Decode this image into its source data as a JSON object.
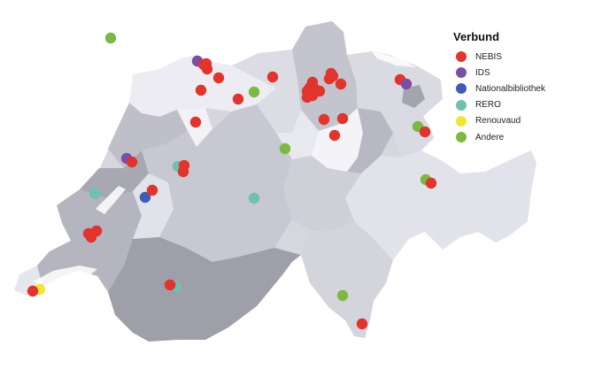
{
  "legend": {
    "title": "Verbund",
    "items": [
      {
        "key": "NEBIS",
        "label": "NEBIS",
        "color": "#e0342c"
      },
      {
        "key": "IDS",
        "label": "IDS",
        "color": "#7b4fa8"
      },
      {
        "key": "Nationalbibliothek",
        "label": "Nationalbibliothek",
        "color": "#3f5cb3"
      },
      {
        "key": "RERO",
        "label": "RERO",
        "color": "#6cc1b0"
      },
      {
        "key": "Renouvaud",
        "label": "Renouvaud",
        "color": "#f2e53a"
      },
      {
        "key": "Andere",
        "label": "Andere",
        "color": "#7cb843"
      }
    ]
  },
  "map": {
    "country": "Switzerland",
    "basemap_colors": [
      "#f2f2f8",
      "#e3e3ec",
      "#d2d2dc",
      "#bdbdc7",
      "#a9a9b3"
    ],
    "markers": [
      {
        "network": "Andere",
        "place": "outside border, north-west"
      },
      {
        "network": "IDS",
        "place": "Basel"
      },
      {
        "network": "NEBIS",
        "place": "Basel"
      },
      {
        "network": "NEBIS",
        "place": "Basel"
      },
      {
        "network": "NEBIS",
        "place": "Basel"
      },
      {
        "network": "NEBIS",
        "place": "Liestal"
      },
      {
        "network": "NEBIS",
        "place": "Rheinfelden"
      },
      {
        "network": "NEBIS",
        "place": "Brugg"
      },
      {
        "network": "Andere",
        "place": "Baden"
      },
      {
        "network": "NEBIS",
        "place": "Aarau"
      },
      {
        "network": "NEBIS",
        "place": "Solothurn area"
      },
      {
        "network": "NEBIS",
        "place": "Zürich"
      },
      {
        "network": "NEBIS",
        "place": "Zürich"
      },
      {
        "network": "NEBIS",
        "place": "Zürich"
      },
      {
        "network": "NEBIS",
        "place": "Zürich"
      },
      {
        "network": "NEBIS",
        "place": "Zürich"
      },
      {
        "network": "NEBIS",
        "place": "Zürich"
      },
      {
        "network": "NEBIS",
        "place": "Zürich"
      },
      {
        "network": "NEBIS",
        "place": "Zürich"
      },
      {
        "network": "NEBIS",
        "place": "Zürich"
      },
      {
        "network": "NEBIS",
        "place": "Winterthur"
      },
      {
        "network": "NEBIS",
        "place": "Winterthur"
      },
      {
        "network": "NEBIS",
        "place": "Winterthur"
      },
      {
        "network": "NEBIS",
        "place": "Uster"
      },
      {
        "network": "NEBIS",
        "place": "Wädenswil"
      },
      {
        "network": "NEBIS",
        "place": "Zug"
      },
      {
        "network": "NEBIS",
        "place": "Rapperswil"
      },
      {
        "network": "IDS",
        "place": "St. Gallen"
      },
      {
        "network": "Andere",
        "place": "St. Gallen"
      },
      {
        "network": "NEBIS",
        "place": "Vaduz area"
      },
      {
        "network": "Andere",
        "place": "Vaduz area"
      },
      {
        "network": "IDS",
        "place": "Luzern"
      },
      {
        "network": "NEBIS",
        "place": "La Chaux-de-Fonds"
      },
      {
        "network": "RERO",
        "place": "La Chaux-de-Fonds"
      },
      {
        "network": "NEBIS",
        "place": "Bern"
      },
      {
        "network": "NEBIS",
        "place": "Bern"
      },
      {
        "network": "Nationalbibliothek",
        "place": "Bern"
      },
      {
        "network": "NEBIS",
        "place": "Neuchâtel"
      },
      {
        "network": "RERO",
        "place": "Neuchâtel"
      },
      {
        "network": "NEBIS",
        "place": "Yverdon"
      },
      {
        "network": "NEBIS",
        "place": "Lausanne"
      },
      {
        "network": "NEBIS",
        "place": "Lausanne"
      },
      {
        "network": "Renouvaud",
        "place": "Lausanne"
      },
      {
        "network": "NEBIS",
        "place": "Genève"
      },
      {
        "network": "RERO",
        "place": "Genève"
      },
      {
        "network": "NEBIS",
        "place": "Sion"
      },
      {
        "network": "RERO",
        "place": "Sion"
      },
      {
        "network": "Andere",
        "place": "Engelberg"
      },
      {
        "network": "NEBIS",
        "place": "Chur"
      },
      {
        "network": "Andere",
        "place": "Chur"
      },
      {
        "network": "NEBIS",
        "place": "Bellinzona"
      },
      {
        "network": "Andere",
        "place": "Lugano"
      }
    ]
  }
}
